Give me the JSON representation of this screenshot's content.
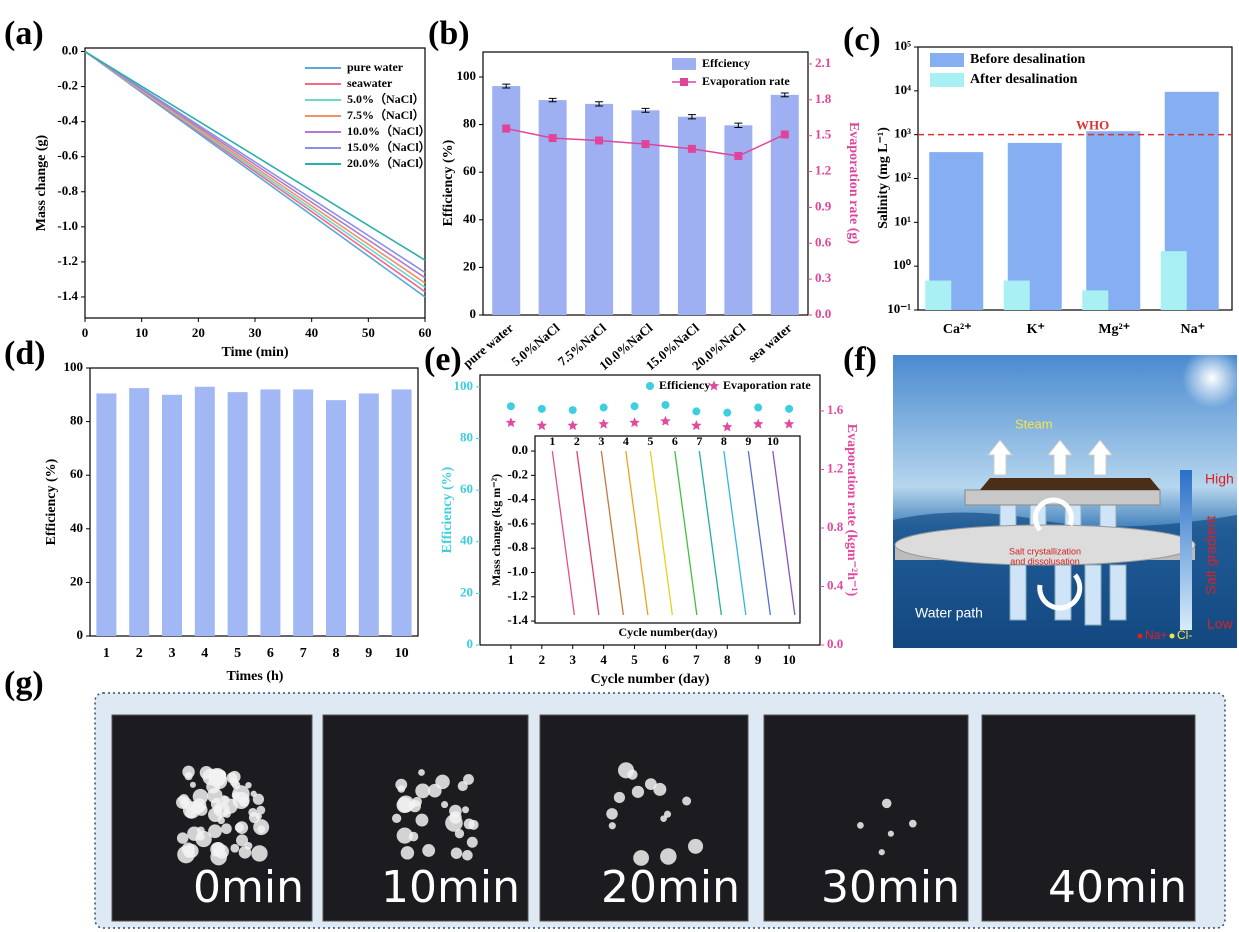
{
  "panel_labels": [
    "(a)",
    "(b)",
    "(c)",
    "(d)",
    "(e)",
    "(f)",
    "(g)"
  ],
  "chart_data": [
    {
      "type": "line",
      "xlabel": "Time (min)",
      "ylabel": "Mass change (g)",
      "legend": "upper right",
      "x": [
        0,
        60
      ],
      "xlim": [
        0,
        60
      ],
      "xticks": [
        0,
        10,
        20,
        30,
        40,
        50,
        60
      ],
      "ylim": [
        -1.52,
        0.02
      ],
      "yticks": [
        {
          "value": 0,
          "label": "0.0"
        },
        -0.2,
        -0.4,
        -0.6,
        -0.8,
        {
          "value": -1,
          "label": "-1.0"
        },
        -1.2,
        -1.4
      ],
      "series": [
        {
          "name": "pure water",
          "color": "#5aa8d8",
          "values": [
            0,
            -1.4
          ]
        },
        {
          "name": "seawater",
          "color": "#f06a8a",
          "values": [
            0,
            -1.37
          ]
        },
        {
          "name": "5.0%（NaCl）",
          "color": "#6ad8d0",
          "values": [
            0,
            -1.345
          ]
        },
        {
          "name": "7.5%（NaCl）",
          "color": "#f59060",
          "values": [
            0,
            -1.32
          ]
        },
        {
          "name": "10.0%（NaCl）",
          "color": "#b07ad0",
          "values": [
            0,
            -1.29
          ]
        },
        {
          "name": "15.0%（NaCl）",
          "color": "#8a90e8",
          "values": [
            0,
            -1.26
          ]
        },
        {
          "name": "20.0%（NaCl）",
          "color": "#2ab0a8",
          "values": [
            0,
            -1.19
          ]
        }
      ]
    },
    {
      "type": "combo",
      "ylabel": "Efficiency (%)",
      "y2label": "Evaporation rate (g)",
      "legend": "upper right",
      "categories": [
        "pure water",
        "5.0%NaCl",
        "7.5%NaCl",
        "10.0%NaCl",
        "15.0%NaCl",
        "20.0%NaCl",
        "sea water"
      ],
      "ylim": [
        0,
        110.5
      ],
      "yticks": [
        0,
        20,
        40,
        60,
        80,
        100
      ],
      "y2lim": [
        0,
        2.2
      ],
      "y2ticks": [
        {
          "value": 0,
          "label": "0.0"
        },
        0.3,
        0.6,
        0.9,
        1.2,
        1.5,
        1.8,
        2.1
      ],
      "series": [
        {
          "name": "Effciency",
          "kind": "bar",
          "color": "#9fb0f2",
          "values": [
            96.2,
            90.3,
            88.7,
            86.0,
            83.3,
            79.7,
            92.5
          ],
          "errors": [
            0.8,
            0.7,
            0.9,
            0.8,
            0.9,
            0.9,
            0.8
          ]
        },
        {
          "name": "Evaporation rate",
          "kind": "line",
          "axis": "y2",
          "color": "#e0449a",
          "values": [
            1.56,
            1.48,
            1.46,
            1.43,
            1.39,
            1.33,
            1.51
          ]
        }
      ]
    },
    {
      "type": "bar",
      "ylabel": "Salinity (mg L⁻¹)",
      "log_scale": true,
      "legend": "upper left",
      "categories": [
        "Ca²⁺",
        "K⁺",
        "Mg²⁺",
        "Na⁺"
      ],
      "ylim": [
        0.1,
        100000
      ],
      "yticks": [
        {
          "value": 0.1,
          "label": "10⁻¹"
        },
        {
          "value": 1,
          "label": "10⁰"
        },
        {
          "value": 10,
          "label": "10¹"
        },
        {
          "value": 100,
          "label": "10²"
        },
        {
          "value": 1000,
          "label": "10³"
        },
        {
          "value": 10000,
          "label": "10⁴"
        },
        {
          "value": 100000,
          "label": "10⁵"
        }
      ],
      "reference_line": {
        "value": 1000,
        "label": "WHO",
        "color": "#e03030"
      },
      "series": [
        {
          "name": "Before desalination",
          "color": "#86aef2",
          "values": [
            400,
            650,
            1200,
            9500
          ]
        },
        {
          "name": "After desalination",
          "color": "#a8f0f4",
          "values": [
            0.47,
            0.47,
            0.28,
            2.2
          ]
        }
      ]
    },
    {
      "type": "bar",
      "xlabel": "Times (h)",
      "ylabel": "Efficiency (%)",
      "color": "#a2b8f4",
      "categories": [
        "1",
        "2",
        "3",
        "4",
        "5",
        "6",
        "7",
        "8",
        "9",
        "10"
      ],
      "values": [
        90.5,
        92.5,
        90.0,
        93.0,
        91.0,
        92.0,
        92.0,
        88.0,
        90.5,
        92.0
      ],
      "ylim": [
        0,
        100
      ],
      "yticks": [
        0,
        20,
        40,
        60,
        80,
        100
      ]
    },
    {
      "type": "scatter",
      "xlabel": "Cycle number (day)",
      "ylabel": "Efficiency (%)",
      "y2label": "Evaporation rate (kgm⁻²h⁻¹)",
      "x": [
        1,
        2,
        3,
        4,
        5,
        6,
        7,
        8,
        9,
        10
      ],
      "xlim": [
        0,
        11
      ],
      "xticks": [
        1,
        2,
        3,
        4,
        5,
        6,
        7,
        8,
        9,
        10
      ],
      "ylim": [
        0,
        104.6
      ],
      "yticks": [
        0,
        20,
        40,
        60,
        80,
        100
      ],
      "y2lim": [
        0,
        1.846
      ],
      "y2ticks": [
        {
          "value": 0,
          "label": "0.0"
        },
        0.4,
        0.8,
        1.2,
        1.6
      ],
      "series": [
        {
          "name": "Efficiency",
          "marker": "circle",
          "color": "#3ccfe0",
          "values": [
            92.5,
            91.5,
            91.0,
            92.0,
            92.5,
            93.0,
            90.5,
            90.0,
            92.0,
            91.5
          ]
        },
        {
          "name": "Evaporation rate",
          "marker": "star",
          "axis": "y2",
          "color": "#e04aa0",
          "values": [
            1.52,
            1.5,
            1.5,
            1.51,
            1.52,
            1.53,
            1.5,
            1.49,
            1.51,
            1.51
          ]
        }
      ]
    },
    {
      "type": "segments",
      "xlabel": "Cycle number(day)",
      "ylabel": "Mass change (kg m⁻²)",
      "categories": [
        "1",
        "2",
        "3",
        "4",
        "5",
        "6",
        "7",
        "8",
        "9",
        "10"
      ],
      "values": [
        -1.35,
        -1.35,
        -1.35,
        -1.35,
        -1.35,
        -1.35,
        -1.35,
        -1.35,
        -1.35,
        -1.35
      ],
      "colors": [
        "#e8508a",
        "#e0407a",
        "#c07a40",
        "#f0a020",
        "#e8d020",
        "#40c040",
        "#20b0a0",
        "#30b8e0",
        "#5070d8",
        "#9050c0"
      ],
      "ylim": [
        -1.416,
        0.124
      ],
      "yticks": [
        {
          "value": 0,
          "label": "0.0"
        },
        -0.2,
        -0.4,
        -0.6,
        -0.8,
        {
          "value": -1,
          "label": "-1.0"
        },
        -1.2,
        -1.4
      ]
    }
  ],
  "diagram": {
    "steam": "Steam",
    "high": "High",
    "gradient": "Salt gradient",
    "low": "Low",
    "process": [
      "Salt crystallization",
      "and dissolusation"
    ],
    "water_path": "Water path",
    "ions": [
      "Na+",
      "Cl-"
    ]
  },
  "photos": {
    "labels": [
      "0min",
      "10min",
      "20min",
      "30min",
      "40min"
    ]
  }
}
